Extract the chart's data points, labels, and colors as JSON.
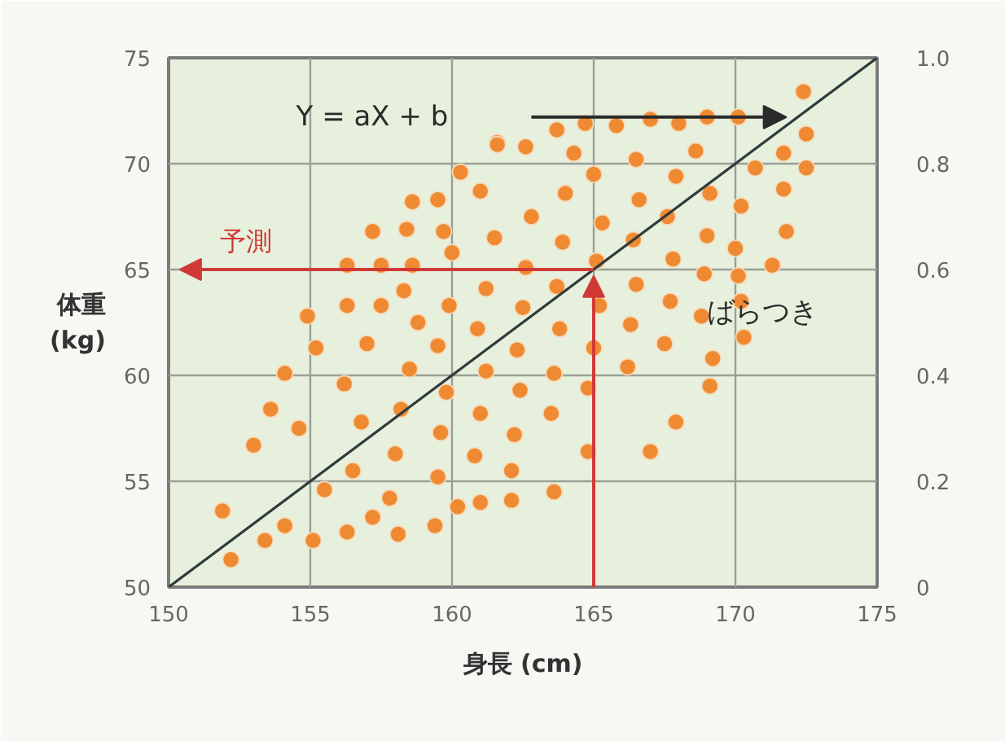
{
  "chart_data": {
    "type": "scatter",
    "xlabel": "身長 (cm)",
    "ylabel": "体重 (kg)",
    "xlim": [
      150,
      175
    ],
    "xticks": [
      150,
      155,
      160,
      165,
      170,
      175
    ],
    "ylim": [
      50,
      75
    ],
    "yticks": [
      50,
      55,
      60,
      65,
      70,
      75
    ],
    "y2lim": [
      0,
      1
    ],
    "y2ticks": [
      0,
      0.2,
      0.4,
      0.6,
      0.8,
      {
        "value": 1,
        "label": "1.0"
      }
    ],
    "grid": true,
    "annotations": [
      "Y = aX + b",
      "予測",
      "ばらつき"
    ],
    "series": [
      {
        "type": "scatter",
        "color": "#ef8a32",
        "marker": "circle",
        "x": [
          152.2,
          151.9,
          153.4,
          154.1,
          153.0,
          153.6,
          154.1,
          154.9,
          155.1,
          156.3,
          158.1,
          159.4,
          156.3,
          155.2,
          155.5,
          154.6,
          157.5,
          161.0,
          162.1,
          163.6,
          167.0,
          167.9,
          169.1,
          169.2,
          170.2,
          164.8,
          162.1,
          172.4,
          172.5,
          172.5,
          171.7,
          171.8,
          171.3,
          170.1,
          170.1,
          169.0,
          168.0,
          167.0,
          165.8,
          164.7,
          163.7,
          161.6,
          162.6,
          164.3,
          171.7,
          170.7,
          161.6,
          160.3,
          161.0,
          159.5,
          158.6,
          157.2,
          158.4,
          159.7,
          156.3,
          157.5,
          158.6,
          156.5,
          156.8,
          156.2,
          157.0,
          157.8,
          158.0,
          158.2,
          158.5,
          158.8,
          158.3,
          159.5,
          159.6,
          159.8,
          159.5,
          159.9,
          160.0,
          160.8,
          161.0,
          161.2,
          160.9,
          161.2,
          161.5,
          162.2,
          162.4,
          162.3,
          162.5,
          162.6,
          162.8,
          163.5,
          163.6,
          163.8,
          163.7,
          163.9,
          164.0,
          164.8,
          165.0,
          165.2,
          165.1,
          165.3,
          165.0,
          166.2,
          166.3,
          166.5,
          166.4,
          166.6,
          166.5,
          167.5,
          167.7,
          167.8,
          167.6,
          167.9,
          168.8,
          168.9,
          169.0,
          169.1,
          168.6,
          170.0,
          170.2,
          170.3,
          160.2,
          157.2
        ],
        "values": [
          51.3,
          53.6,
          52.2,
          52.9,
          56.7,
          58.4,
          60.1,
          62.8,
          52.2,
          52.6,
          52.5,
          52.9,
          63.3,
          61.3,
          54.6,
          57.5,
          63.3,
          54.0,
          54.1,
          54.5,
          56.4,
          57.8,
          59.5,
          60.8,
          63.5,
          56.4,
          55.5,
          73.4,
          71.4,
          69.8,
          68.8,
          66.8,
          65.2,
          64.7,
          72.2,
          72.2,
          71.9,
          72.1,
          71.8,
          71.9,
          71.6,
          71.0,
          70.8,
          70.5,
          70.5,
          69.8,
          70.9,
          69.6,
          68.7,
          68.3,
          68.2,
          66.8,
          66.9,
          66.8,
          65.2,
          65.2,
          65.2,
          55.5,
          57.8,
          59.6,
          61.5,
          54.2,
          56.3,
          58.4,
          60.3,
          62.5,
          64.0,
          55.2,
          57.3,
          59.2,
          61.4,
          63.3,
          65.8,
          56.2,
          58.2,
          60.2,
          62.2,
          64.1,
          66.5,
          57.2,
          59.3,
          61.2,
          63.2,
          65.1,
          67.5,
          58.2,
          60.1,
          62.2,
          64.2,
          66.3,
          68.6,
          59.4,
          61.3,
          63.3,
          65.4,
          67.2,
          69.5,
          60.4,
          62.4,
          64.3,
          66.4,
          68.3,
          70.2,
          61.5,
          63.5,
          65.5,
          67.5,
          69.4,
          62.8,
          64.8,
          66.6,
          68.6,
          70.6,
          66.0,
          68.0,
          61.8,
          53.8,
          53.3
        ]
      },
      {
        "type": "line",
        "color": "#2f3b3b",
        "x": [
          150,
          175
        ],
        "values": [
          50,
          75
        ]
      }
    ]
  }
}
